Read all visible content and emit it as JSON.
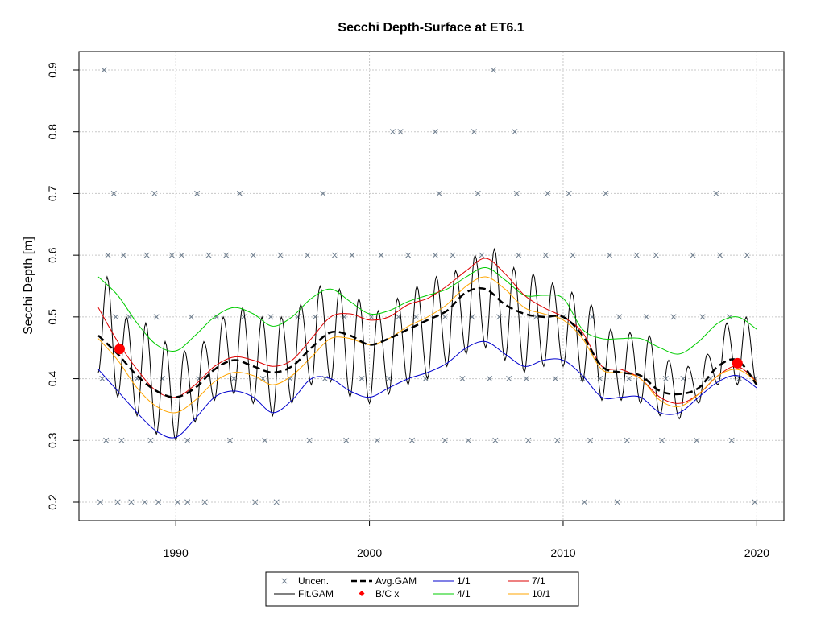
{
  "chart_data": {
    "type": "line",
    "title": "Secchi Depth-Surface at ET6.1",
    "xlabel": "",
    "ylabel": "Secchi Depth [m]",
    "xlim": [
      1985,
      2021.4
    ],
    "ylim": [
      0.17,
      0.93
    ],
    "x_ticks": [
      1990,
      2000,
      2010,
      2020
    ],
    "y_ticks": [
      0.2,
      0.3,
      0.4,
      0.5,
      0.6,
      0.7,
      0.8,
      0.9
    ],
    "grid": true,
    "legend_position": "bottom-center",
    "colors": {
      "uncen": "#6b7b8c",
      "fit_gam": "#000000",
      "avg_gam": "#000000",
      "bc": "#ff0000",
      "s1_1": "#0000cd",
      "s4_1": "#00cc00",
      "s7_1": "#dd0000",
      "s10_1": "#ffa500"
    },
    "legend": [
      {
        "key": "uncen",
        "label": "Uncen."
      },
      {
        "key": "avg_gam",
        "label": "Avg.GAM"
      },
      {
        "key": "s1_1",
        "label": "1/1"
      },
      {
        "key": "s7_1",
        "label": "7/1"
      },
      {
        "key": "fit_gam",
        "label": "Fit.GAM"
      },
      {
        "key": "bc",
        "label": "B/C x"
      },
      {
        "key": "s4_1",
        "label": "4/1"
      },
      {
        "key": "s10_1",
        "label": "10/1"
      }
    ],
    "series": [
      {
        "key": "avg_gam",
        "x": [
          1986,
          1987,
          1988,
          1989,
          1990,
          1991,
          1992,
          1993,
          1994,
          1995,
          1996,
          1997,
          1998,
          1999,
          2000,
          2001,
          2002,
          2003,
          2004,
          2005,
          2006,
          2007,
          2008,
          2009,
          2010,
          2011,
          2012,
          2013,
          2014,
          2015,
          2016,
          2017,
          2018,
          2019,
          2020
        ],
        "y": [
          0.47,
          0.44,
          0.405,
          0.38,
          0.37,
          0.385,
          0.415,
          0.43,
          0.42,
          0.41,
          0.42,
          0.45,
          0.475,
          0.47,
          0.455,
          0.465,
          0.48,
          0.495,
          0.51,
          0.54,
          0.545,
          0.52,
          0.505,
          0.5,
          0.5,
          0.47,
          0.42,
          0.41,
          0.405,
          0.38,
          0.375,
          0.385,
          0.42,
          0.43,
          0.39
        ]
      },
      {
        "key": "s1_1",
        "x": [
          1986,
          1987,
          1988,
          1989,
          1990,
          1991,
          1992,
          1993,
          1994,
          1995,
          1996,
          1997,
          1998,
          1999,
          2000,
          2001,
          2002,
          2003,
          2004,
          2005,
          2006,
          2007,
          2008,
          2009,
          2010,
          2011,
          2012,
          2013,
          2014,
          2015,
          2016,
          2017,
          2018,
          2019,
          2020
        ],
        "y": [
          0.415,
          0.38,
          0.345,
          0.315,
          0.305,
          0.335,
          0.37,
          0.38,
          0.37,
          0.345,
          0.365,
          0.4,
          0.4,
          0.38,
          0.37,
          0.385,
          0.4,
          0.41,
          0.425,
          0.45,
          0.46,
          0.44,
          0.42,
          0.43,
          0.43,
          0.405,
          0.37,
          0.37,
          0.37,
          0.345,
          0.345,
          0.37,
          0.395,
          0.405,
          0.385
        ]
      },
      {
        "key": "s4_1",
        "x": [
          1986,
          1987,
          1988,
          1989,
          1990,
          1991,
          1992,
          1993,
          1994,
          1995,
          1996,
          1997,
          1998,
          1999,
          2000,
          2001,
          2002,
          2003,
          2004,
          2005,
          2006,
          2007,
          2008,
          2009,
          2010,
          2011,
          2012,
          2013,
          2014,
          2015,
          2016,
          2017,
          2018,
          2019,
          2020
        ],
        "y": [
          0.565,
          0.535,
          0.49,
          0.455,
          0.445,
          0.47,
          0.5,
          0.515,
          0.505,
          0.485,
          0.5,
          0.53,
          0.545,
          0.525,
          0.505,
          0.51,
          0.525,
          0.535,
          0.545,
          0.565,
          0.58,
          0.56,
          0.535,
          0.535,
          0.53,
          0.48,
          0.465,
          0.465,
          0.465,
          0.45,
          0.44,
          0.46,
          0.49,
          0.5,
          0.48
        ]
      },
      {
        "key": "s7_1",
        "x": [
          1986,
          1987,
          1988,
          1989,
          1990,
          1991,
          1992,
          1993,
          1994,
          1995,
          1996,
          1997,
          1998,
          1999,
          2000,
          2001,
          2002,
          2003,
          2004,
          2005,
          2006,
          2007,
          2008,
          2009,
          2010,
          2011,
          2012,
          2013,
          2014,
          2015,
          2016,
          2017,
          2018,
          2019,
          2020
        ],
        "y": [
          0.515,
          0.46,
          0.415,
          0.38,
          0.37,
          0.39,
          0.42,
          0.435,
          0.43,
          0.42,
          0.43,
          0.465,
          0.5,
          0.505,
          0.495,
          0.5,
          0.52,
          0.53,
          0.55,
          0.575,
          0.595,
          0.57,
          0.535,
          0.515,
          0.5,
          0.475,
          0.42,
          0.415,
          0.4,
          0.37,
          0.36,
          0.375,
          0.405,
          0.42,
          0.395
        ]
      },
      {
        "key": "s10_1",
        "x": [
          1986,
          1987,
          1988,
          1989,
          1990,
          1991,
          1992,
          1993,
          1994,
          1995,
          1996,
          1997,
          1998,
          1999,
          2000,
          2001,
          2002,
          2003,
          2004,
          2005,
          2006,
          2007,
          2008,
          2009,
          2010,
          2011,
          2012,
          2013,
          2014,
          2015,
          2016,
          2017,
          2018,
          2019,
          2020
        ],
        "y": [
          0.465,
          0.43,
          0.385,
          0.355,
          0.345,
          0.365,
          0.395,
          0.41,
          0.405,
          0.39,
          0.405,
          0.435,
          0.465,
          0.465,
          0.455,
          0.465,
          0.485,
          0.5,
          0.52,
          0.55,
          0.565,
          0.545,
          0.515,
          0.505,
          0.495,
          0.465,
          0.415,
          0.41,
          0.4,
          0.365,
          0.355,
          0.375,
          0.405,
          0.415,
          0.395
        ]
      }
    ],
    "fit_gam": {
      "x_start": 1986,
      "x_end": 2020,
      "cycles_per_year": 1,
      "peak_y": [
        0.565,
        0.5,
        0.49,
        0.46,
        0.445,
        0.46,
        0.5,
        0.515,
        0.5,
        0.5,
        0.52,
        0.55,
        0.545,
        0.53,
        0.51,
        0.53,
        0.55,
        0.565,
        0.575,
        0.6,
        0.61,
        0.58,
        0.57,
        0.555,
        0.54,
        0.52,
        0.48,
        0.475,
        0.47,
        0.43,
        0.42,
        0.44,
        0.49,
        0.5
      ],
      "trough_y": [
        0.41,
        0.37,
        0.34,
        0.31,
        0.3,
        0.33,
        0.365,
        0.375,
        0.36,
        0.34,
        0.36,
        0.39,
        0.395,
        0.37,
        0.36,
        0.375,
        0.39,
        0.4,
        0.42,
        0.44,
        0.45,
        0.43,
        0.41,
        0.42,
        0.42,
        0.395,
        0.365,
        0.365,
        0.36,
        0.34,
        0.335,
        0.36,
        0.39,
        0.39
      ]
    },
    "bc_points": {
      "x": [
        1987.1,
        2019.0
      ],
      "y": [
        0.448,
        0.425
      ]
    },
    "uncen_points": {
      "x": [
        1986.2,
        1986.5,
        1986.9,
        1987.3,
        1987.6,
        1988.0,
        1988.5,
        1989.0,
        1989.3,
        1989.8,
        1990.3,
        1990.8,
        1991.2,
        1991.7,
        1992.1,
        1992.6,
        1993.0,
        1993.5,
        1994.0,
        1994.5,
        1994.9,
        1995.4,
        1995.9,
        1996.3,
        1996.8,
        1997.2,
        1997.7,
        1998.2,
        1998.7,
        1999.1,
        1999.6,
        2000.1,
        2000.6,
        2001.0,
        2001.5,
        2002.0,
        2002.4,
        2002.9,
        2003.4,
        2003.9,
        2004.3,
        2004.8,
        2005.3,
        2005.8,
        2006.2,
        2006.7,
        2007.2,
        2007.7,
        2008.1,
        2008.6,
        2009.1,
        2009.6,
        2010.0,
        2010.5,
        2011.0,
        2011.5,
        2011.9,
        2012.4,
        2012.9,
        2013.4,
        2013.8,
        2014.3,
        2014.8,
        2015.3,
        2015.7,
        2016.2,
        2016.7,
        2017.2,
        2017.6,
        2018.1,
        2018.6,
        2019.1,
        2019.5,
        2019.9,
        1986.4,
        1987.2,
        1988.7,
        1990.6,
        1992.8,
        1994.6,
        1996.9,
        1998.8,
        2000.4,
        2002.2,
        2003.9,
        2005.1,
        2006.5,
        2008.2,
        2009.7,
        2011.4,
        2013.3,
        2015.1,
        2016.9,
        2018.7,
        1986.8,
        1988.9,
        1991.1,
        1993.3,
        1997.6,
        2003.6,
        2005.6,
        2007.6,
        2009.2,
        2010.3,
        2012.2,
        2017.9,
        2001.2,
        2001.6,
        2003.4,
        2005.4,
        2007.5,
        1986.3,
        2006.4,
        1986.1,
        1987.0,
        1987.7,
        1988.4,
        1989.1,
        1990.1,
        1990.6,
        1991.5,
        1994.1,
        1995.2,
        2011.1,
        2012.8,
        2019.9
      ],
      "y": [
        0.4,
        0.6,
        0.5,
        0.6,
        0.5,
        0.4,
        0.6,
        0.5,
        0.4,
        0.6,
        0.6,
        0.5,
        0.4,
        0.6,
        0.5,
        0.6,
        0.4,
        0.5,
        0.6,
        0.4,
        0.5,
        0.6,
        0.4,
        0.5,
        0.6,
        0.5,
        0.4,
        0.6,
        0.5,
        0.6,
        0.4,
        0.5,
        0.6,
        0.4,
        0.5,
        0.6,
        0.5,
        0.4,
        0.6,
        0.5,
        0.6,
        0.4,
        0.5,
        0.6,
        0.4,
        0.5,
        0.4,
        0.6,
        0.4,
        0.5,
        0.6,
        0.4,
        0.5,
        0.6,
        0.4,
        0.5,
        0.4,
        0.6,
        0.5,
        0.4,
        0.6,
        0.5,
        0.6,
        0.4,
        0.5,
        0.4,
        0.6,
        0.5,
        0.4,
        0.6,
        0.5,
        0.4,
        0.6,
        0.4,
        0.3,
        0.3,
        0.3,
        0.3,
        0.3,
        0.3,
        0.3,
        0.3,
        0.3,
        0.3,
        0.3,
        0.3,
        0.3,
        0.3,
        0.3,
        0.3,
        0.3,
        0.3,
        0.3,
        0.3,
        0.7,
        0.7,
        0.7,
        0.7,
        0.7,
        0.7,
        0.7,
        0.7,
        0.7,
        0.7,
        0.7,
        0.7,
        0.8,
        0.8,
        0.8,
        0.8,
        0.8,
        0.9,
        0.9,
        0.2,
        0.2,
        0.2,
        0.2,
        0.2,
        0.2,
        0.2,
        0.2,
        0.2,
        0.2,
        0.2,
        0.2,
        0.2
      ]
    }
  }
}
